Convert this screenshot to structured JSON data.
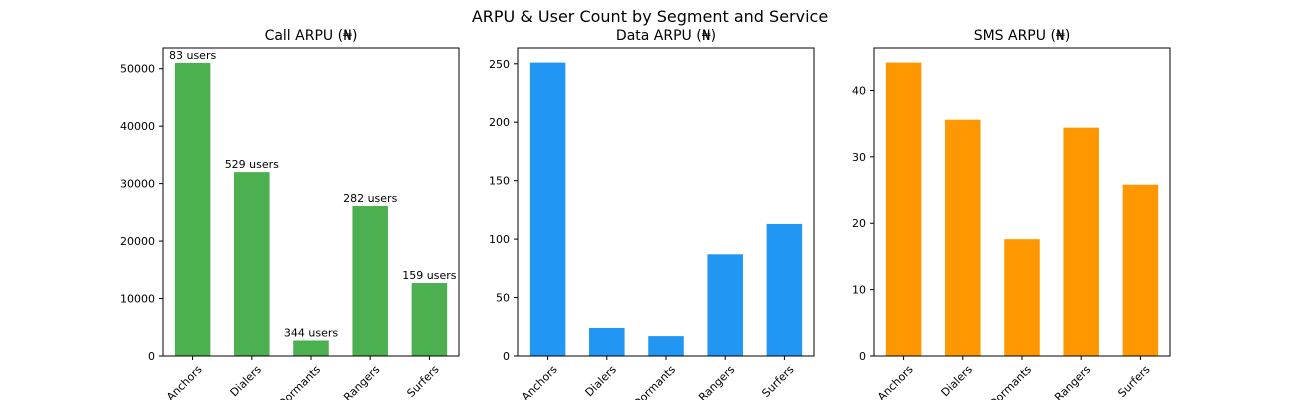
{
  "figure": {
    "title": "ARPU & User Count by Segment and Service"
  },
  "chart_data": [
    {
      "type": "bar",
      "title": "Call ARPU (₦)",
      "categories": [
        "Anchors",
        "Dialers",
        "Dormants",
        "Rangers",
        "Surfers"
      ],
      "values": [
        51000,
        32000,
        2700,
        26100,
        12700
      ],
      "data_labels": [
        "83 users",
        "529 users",
        "344 users",
        "282 users",
        "159 users"
      ],
      "ylim": [
        0,
        53600
      ],
      "yticks": [
        0,
        10000,
        20000,
        30000,
        40000,
        50000
      ],
      "color": "#4caf50",
      "grid": false
    },
    {
      "type": "bar",
      "title": "Data ARPU (₦)",
      "categories": [
        "Anchors",
        "Dialers",
        "Dormants",
        "Rangers",
        "Surfers"
      ],
      "values": [
        251,
        24,
        17,
        87,
        113
      ],
      "data_labels": [],
      "ylim": [
        0,
        263.5
      ],
      "yticks": [
        0,
        50,
        100,
        150,
        200,
        250
      ],
      "color": "#2196f3",
      "grid": false
    },
    {
      "type": "bar",
      "title": "SMS ARPU (₦)",
      "categories": [
        "Anchors",
        "Dialers",
        "Dormants",
        "Rangers",
        "Surfers"
      ],
      "values": [
        44.2,
        35.6,
        17.6,
        34.4,
        25.8
      ],
      "data_labels": [],
      "ylim": [
        0,
        46.4
      ],
      "yticks": [
        0,
        10,
        20,
        30,
        40
      ],
      "color": "#ff9800",
      "grid": false
    }
  ]
}
